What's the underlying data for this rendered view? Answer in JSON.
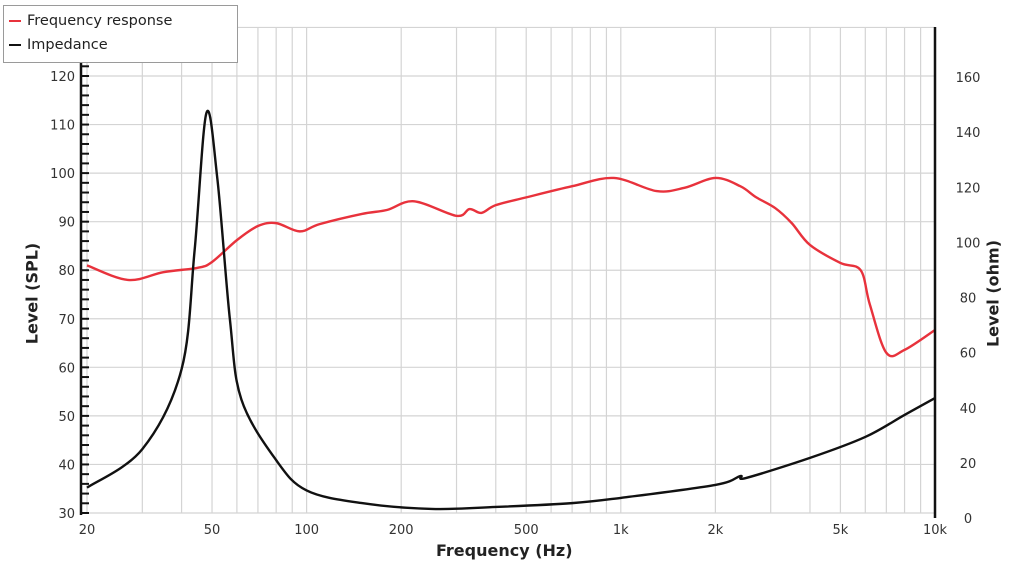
{
  "chart_data": {
    "type": "line",
    "title": "",
    "xlabel": "Frequency (Hz)",
    "ylabel": "Level (SPL)",
    "y2label": "Level (ohm)",
    "xscale": "log",
    "xlim": [
      20,
      10000
    ],
    "ylim": [
      30,
      130
    ],
    "y2lim": [
      0,
      170
    ],
    "x_ticks": [
      {
        "value": 20,
        "label": "20"
      },
      {
        "value": 50,
        "label": "50"
      },
      {
        "value": 100,
        "label": "100"
      },
      {
        "value": 200,
        "label": "200"
      },
      {
        "value": 500,
        "label": "500"
      },
      {
        "value": 1000,
        "label": "1k"
      },
      {
        "value": 2000,
        "label": "2k"
      },
      {
        "value": 5000,
        "label": "5k"
      },
      {
        "value": 10000,
        "label": "10k"
      }
    ],
    "y_ticks": [
      30,
      40,
      50,
      60,
      70,
      80,
      90,
      100,
      110,
      120
    ],
    "y2_ticks": [
      0,
      20,
      40,
      60,
      80,
      100,
      120,
      140,
      160
    ],
    "grid": true,
    "legend_position": "top-left",
    "series": [
      {
        "name": "Frequency response",
        "color": "#e8323c",
        "axis": "left",
        "x": [
          20,
          27,
          35,
          45,
          50,
          60,
          70,
          80,
          95,
          110,
          150,
          180,
          220,
          300,
          330,
          360,
          400,
          500,
          700,
          950,
          1300,
          1600,
          2000,
          2400,
          2700,
          3100,
          3500,
          4000,
          5000,
          5800,
          6200,
          7000,
          8000,
          10000
        ],
        "values": [
          81,
          78,
          79.6,
          80.5,
          81.7,
          86.2,
          89.1,
          89.7,
          88,
          89.5,
          91.6,
          92.4,
          94.2,
          91.2,
          92.6,
          91.8,
          93.4,
          95,
          97.3,
          99,
          96.3,
          97,
          99,
          97.3,
          95,
          92.8,
          89.7,
          85.2,
          81.5,
          80,
          73,
          63,
          63.6,
          67.7
        ]
      },
      {
        "name": "Impedance",
        "color": "#111111",
        "axis": "right",
        "x": [
          20,
          30,
          40,
          44,
          48,
          52,
          57,
          62,
          80,
          100,
          150,
          250,
          400,
          700,
          1000,
          2000,
          2400,
          2500,
          4000,
          6000,
          8000,
          10000
        ],
        "values": [
          11,
          25,
          54,
          97,
          147,
          123,
          72,
          43,
          21,
          10,
          5.4,
          3.3,
          4,
          5.4,
          7.3,
          12,
          15.2,
          14.5,
          21.8,
          29.4,
          37.4,
          43.5
        ]
      }
    ]
  },
  "legend": {
    "items": [
      {
        "label": "Frequency response",
        "color": "#e8323c"
      },
      {
        "label": "Impedance",
        "color": "#111111"
      }
    ]
  },
  "axes": {
    "x_title": "Frequency (Hz)",
    "y_left_title": "Level (SPL)",
    "y_right_title": "Level (ohm)"
  }
}
